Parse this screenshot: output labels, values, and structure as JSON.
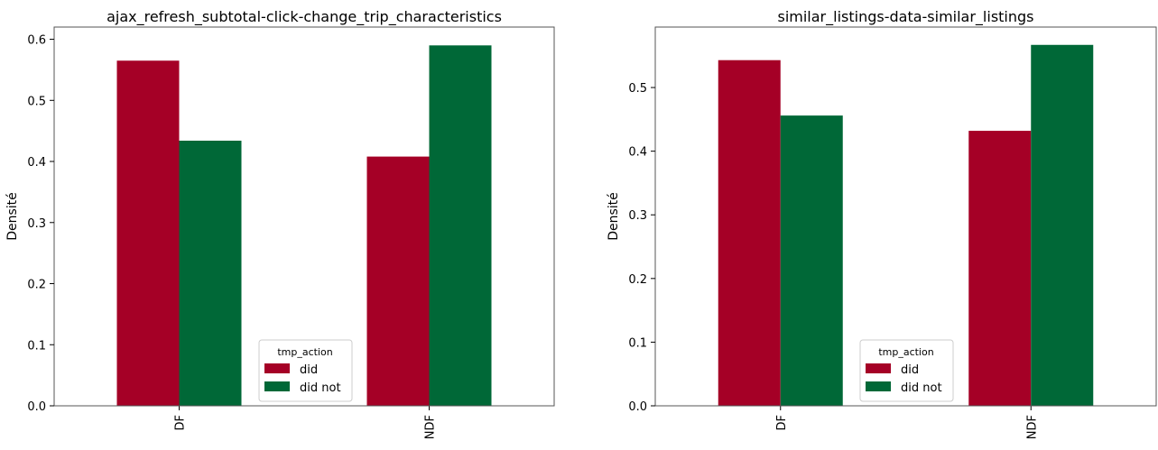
{
  "chart_data": [
    {
      "type": "bar",
      "title": "ajax_refresh_subtotal-click-change_trip_characteristics",
      "xlabel": "",
      "ylabel": "Densité",
      "categories": [
        "DF",
        "NDF"
      ],
      "series": [
        {
          "name": "did",
          "values": [
            0.565,
            0.408
          ]
        },
        {
          "name": "did not",
          "values": [
            0.434,
            0.59
          ]
        }
      ],
      "ylim": [
        0,
        0.62
      ],
      "yticks": [
        "0.0",
        "0.1",
        "0.2",
        "0.3",
        "0.4",
        "0.5",
        "0.6"
      ],
      "legend": {
        "title": "tmp_action",
        "placement": "lower-center"
      },
      "grid": false
    },
    {
      "type": "bar",
      "title": "similar_listings-data-similar_listings",
      "xlabel": "",
      "ylabel": "Densité",
      "categories": [
        "DF",
        "NDF"
      ],
      "series": [
        {
          "name": "did",
          "values": [
            0.543,
            0.432
          ]
        },
        {
          "name": "did not",
          "values": [
            0.456,
            0.567
          ]
        }
      ],
      "ylim": [
        0,
        0.595
      ],
      "yticks": [
        "0.0",
        "0.1",
        "0.2",
        "0.3",
        "0.4",
        "0.5"
      ],
      "legend": {
        "title": "tmp_action",
        "placement": "lower-center"
      },
      "grid": false
    }
  ],
  "colors": {
    "did": "#a50026",
    "did not": "#006837"
  }
}
